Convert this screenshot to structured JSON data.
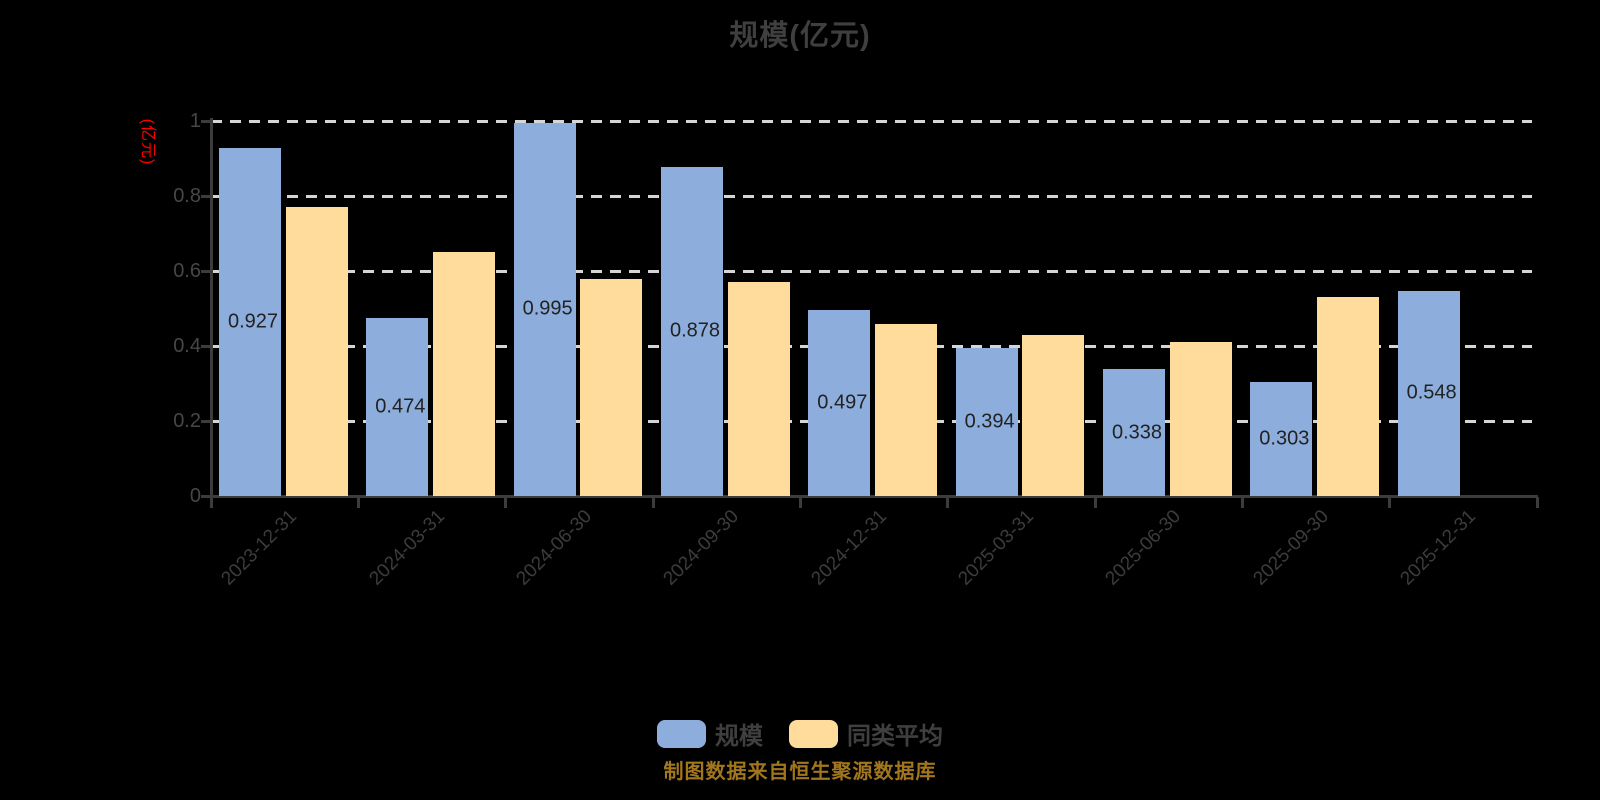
{
  "title": "规模(亿元)",
  "footer": "制图数据来自恒生聚源数据库",
  "colors": {
    "scale_bar": "#8DAEDC",
    "peer_average_bar": "#FFDB9C",
    "axis": "#3C3C3C",
    "gridline": "#D5D5D5",
    "title_text": "#3F3F3F",
    "y_axis_name_text": "#FF0000",
    "footer_text": "#A2761D",
    "background": "#000000"
  },
  "chart_data": {
    "type": "bar",
    "title": "规模(亿元)",
    "ylabel": "(亿元)",
    "xlabel": "",
    "categories": [
      "2023-12-31",
      "2024-03-31",
      "2024-06-30",
      "2024-09-30",
      "2024-12-31",
      "2025-03-31",
      "2025-06-30",
      "2025-09-30",
      "2025-12-31"
    ],
    "series": [
      {
        "name": "规模",
        "color": "#8DAEDC",
        "values": [
          0.927,
          0.474,
          0.995,
          0.878,
          0.497,
          0.394,
          0.338,
          0.303,
          0.548
        ],
        "data_labels_shown": true
      },
      {
        "name": "同类平均",
        "color": "#FFDB9C",
        "values": [
          0.77,
          0.65,
          0.58,
          0.57,
          0.46,
          0.43,
          0.41,
          0.53,
          null
        ],
        "data_labels_shown": false
      }
    ],
    "ylim": [
      0,
      1
    ],
    "yticks": [
      0,
      0.2,
      0.4,
      0.6,
      0.8,
      1
    ],
    "grid": "horizontal-dashed",
    "legend_position": "bottom"
  }
}
